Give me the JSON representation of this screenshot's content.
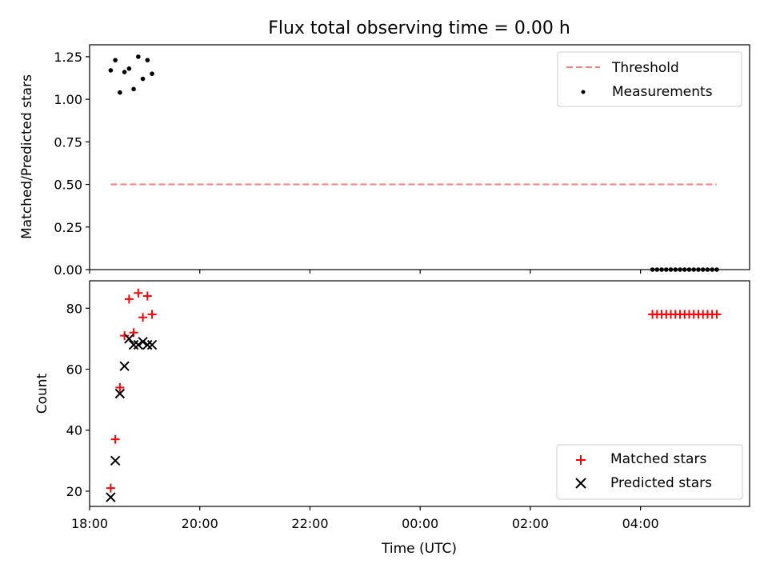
{
  "title": "Flux total observing time = 0.00 h",
  "chart_data": [
    {
      "type": "scatter",
      "panel": "top",
      "title": "Flux total observing time = 0.00 h",
      "ylabel": "Matched/Predicted stars",
      "xlabel": "",
      "xlim_hours": [
        18.0,
        29.98
      ],
      "ylim": [
        0,
        1.32
      ],
      "yticks": [
        0.0,
        0.25,
        0.5,
        0.75,
        1.0,
        1.25
      ],
      "ytick_labels": [
        "0.00",
        "0.25",
        "0.50",
        "0.75",
        "1.00",
        "1.25"
      ],
      "legend_position": "top-right",
      "series": [
        {
          "name": "Threshold",
          "kind": "line",
          "style": "dashed",
          "color": "#ff7f7f",
          "x": [
            "18:23",
            "05:23"
          ],
          "y": [
            0.5,
            0.5
          ]
        },
        {
          "name": "Measurements",
          "kind": "scatter",
          "color": "#000000",
          "x": [
            "18:23",
            "18:28",
            "18:33",
            "18:38",
            "18:43",
            "18:48",
            "18:53",
            "18:58",
            "19:03",
            "19:08",
            "04:13",
            "04:18",
            "04:23",
            "04:28",
            "04:33",
            "04:38",
            "04:43",
            "04:48",
            "04:53",
            "04:58",
            "05:03",
            "05:08",
            "05:13",
            "05:18",
            "05:23"
          ],
          "y": [
            1.17,
            1.23,
            1.04,
            1.16,
            1.18,
            1.06,
            1.25,
            1.12,
            1.23,
            1.15,
            0,
            0,
            0,
            0,
            0,
            0,
            0,
            0,
            0,
            0,
            0,
            0,
            0,
            0,
            0
          ]
        }
      ]
    },
    {
      "type": "scatter",
      "panel": "bottom",
      "xlabel": "Time (UTC)",
      "ylabel": "Count",
      "xlim_hours": [
        18.0,
        29.98
      ],
      "ylim": [
        15,
        89
      ],
      "yticks": [
        20,
        40,
        60,
        80
      ],
      "xtick_labels": [
        "18:00",
        "20:00",
        "22:00",
        "00:00",
        "02:00",
        "04:00"
      ],
      "legend_position": "bottom-right",
      "series": [
        {
          "name": "Matched stars",
          "marker": "+",
          "color": "#ff0000",
          "x": [
            "18:23",
            "18:28",
            "18:33",
            "18:38",
            "18:43",
            "18:48",
            "18:53",
            "18:58",
            "19:03",
            "19:08",
            "04:13",
            "04:18",
            "04:23",
            "04:28",
            "04:33",
            "04:38",
            "04:43",
            "04:48",
            "04:53",
            "04:58",
            "05:03",
            "05:08",
            "05:13",
            "05:18",
            "05:23"
          ],
          "y": [
            21,
            37,
            54,
            71,
            83,
            72,
            85,
            77,
            84,
            78,
            78,
            78,
            78,
            78,
            78,
            78,
            78,
            78,
            78,
            78,
            78,
            78,
            78,
            78,
            78
          ]
        },
        {
          "name": "Predicted stars",
          "marker": "x",
          "color": "#000000",
          "x": [
            "18:23",
            "18:28",
            "18:33",
            "18:38",
            "18:43",
            "18:48",
            "18:53",
            "18:58",
            "19:03",
            "19:08"
          ],
          "y": [
            18,
            30,
            52,
            61,
            70,
            68,
            68,
            69,
            68,
            68
          ]
        }
      ]
    }
  ]
}
